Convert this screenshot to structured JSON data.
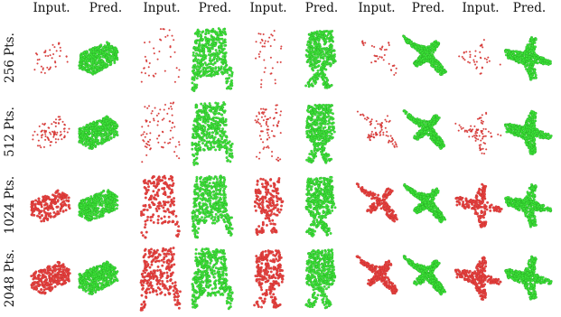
{
  "figure": {
    "column_headers": [
      "Input.",
      "Pred.",
      "Input.",
      "Pred.",
      "Input.",
      "Pred.",
      "Input.",
      "Pred.",
      "Input.",
      "Pred."
    ],
    "row_labels": [
      "256 Pts.",
      "512 Pts.",
      "1024 Pts.",
      "2048 Pts."
    ],
    "objects": [
      "car",
      "chair",
      "office-chair",
      "airplane",
      "airplane-side"
    ],
    "colors": {
      "input": "#e8413f",
      "prediction": "#3ee63a",
      "input_edge": "#b52a28",
      "prediction_edge": "#1e8f1c"
    },
    "input_density": [
      0.15,
      0.3,
      0.75,
      1.0
    ]
  }
}
